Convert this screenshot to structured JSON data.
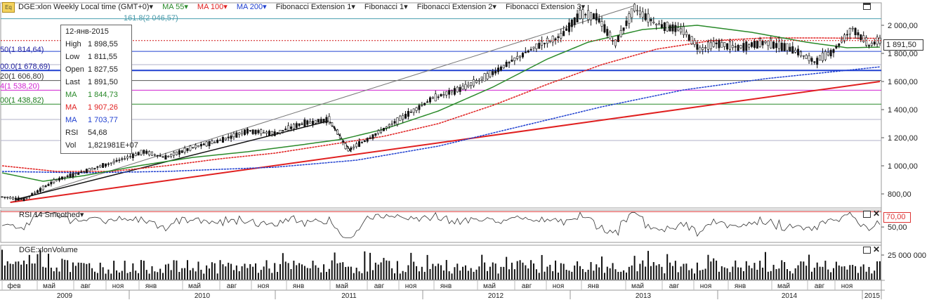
{
  "header": {
    "badge": "Eq",
    "symbol": "DGE:xlon Weekly Local time (GMT+0)▾",
    "ma55": "MA 55▾",
    "ma100": "MA 100▾",
    "ma200": "MA 200▾",
    "fibext1": "Fibonacci Extension 1▾",
    "fib1": "Fibonacci 1▾",
    "fibext2": "Fibonacci Extension 2▾",
    "fibext3": "Fibonacci Extension 3▾"
  },
  "colors": {
    "ma55": "#2a8a2a",
    "ma100": "#e02020",
    "ma200": "#2040d0",
    "fib_magenta": "#d020d0",
    "price_line": "#d01010"
  },
  "tooltip": {
    "date": "12-янв-2015",
    "high_label": "High",
    "high": "1 898,55",
    "low_label": "Low",
    "low": "1 811,55",
    "open_label": "Open",
    "open": "1 827,55",
    "last_label": "Last",
    "last": "1 891,50",
    "ma55_label": "MA",
    "ma55": "1 844,73",
    "ma100_label": "MA",
    "ma100": "1 907,26",
    "ma200_label": "MA",
    "ma200": "1 703,77",
    "rsi_label": "RSI",
    "rsi": "54,68",
    "vol_label": "Vol",
    "vol": "1,821981E+07"
  },
  "fib_labels": {
    "top": "161.8(2 046,57)",
    "l1": "50(1 814,64)",
    "l2": "00.0(1 678,69)",
    "l3": "20(1 606,80)",
    "l4": "4(1 538,20)",
    "l5": "00(1 438,82)"
  },
  "price_tag": "1 891,50",
  "rsi_pane": {
    "title": "RSI 14 Smoothed▾",
    "tag": "70,00"
  },
  "volume_pane": {
    "title": "DGE:xlonVolume"
  },
  "chart_data": {
    "type": "candlestick",
    "price_axis": {
      "ticks": [
        "2 000,00",
        "1 800,00",
        "1 600,00",
        "1 400,00",
        "1 200,00",
        "1 000,00",
        "800,00"
      ],
      "range": [
        700,
        2160
      ]
    },
    "rsi_axis": {
      "ticks": [
        "70,00",
        "50,00"
      ],
      "range": [
        30,
        72
      ]
    },
    "volume_axis": {
      "ticks": [
        "25 000 000"
      ],
      "range": [
        0,
        35000000
      ]
    },
    "x_months": [
      "фев",
      "май",
      "авг",
      "ноя",
      "янв",
      "май",
      "авг",
      "ноя",
      "янв",
      "май",
      "авг",
      "ноя",
      "янв",
      "май",
      "авг",
      "ноя",
      "янв",
      "май",
      "авг",
      "ноя",
      "янв",
      "май",
      "авг",
      "ноя"
    ],
    "x_years": [
      "2009",
      "2010",
      "2011",
      "2012",
      "2013",
      "2014",
      "2015"
    ],
    "price_keypoints": [
      [
        0,
        780
      ],
      [
        8,
        760
      ],
      [
        20,
        900
      ],
      [
        40,
        1020
      ],
      [
        52,
        1100
      ],
      [
        60,
        1060
      ],
      [
        70,
        1130
      ],
      [
        80,
        1180
      ],
      [
        90,
        1250
      ],
      [
        100,
        1230
      ],
      [
        110,
        1300
      ],
      [
        120,
        1330
      ],
      [
        127,
        1110
      ],
      [
        135,
        1200
      ],
      [
        145,
        1320
      ],
      [
        158,
        1480
      ],
      [
        170,
        1560
      ],
      [
        180,
        1660
      ],
      [
        190,
        1780
      ],
      [
        198,
        1870
      ],
      [
        205,
        1920
      ],
      [
        212,
        2080
      ],
      [
        218,
        2060
      ],
      [
        225,
        1870
      ],
      [
        232,
        2120
      ],
      [
        240,
        2010
      ],
      [
        250,
        1960
      ],
      [
        256,
        1830
      ],
      [
        262,
        1870
      ],
      [
        270,
        1840
      ],
      [
        280,
        1880
      ],
      [
        290,
        1830
      ],
      [
        298,
        1740
      ],
      [
        305,
        1820
      ],
      [
        312,
        1980
      ],
      [
        318,
        1860
      ],
      [
        322,
        1891.5
      ]
    ],
    "ma55_keypoints": [
      [
        0,
        950
      ],
      [
        15,
        890
      ],
      [
        30,
        930
      ],
      [
        50,
        1000
      ],
      [
        70,
        1060
      ],
      [
        90,
        1100
      ],
      [
        110,
        1150
      ],
      [
        125,
        1190
      ],
      [
        140,
        1260
      ],
      [
        160,
        1390
      ],
      [
        180,
        1560
      ],
      [
        200,
        1760
      ],
      [
        215,
        1880
      ],
      [
        235,
        1970
      ],
      [
        255,
        2000
      ],
      [
        275,
        1950
      ],
      [
        295,
        1880
      ],
      [
        310,
        1840
      ],
      [
        322,
        1845
      ]
    ],
    "ma100_keypoints": [
      [
        0,
        1000
      ],
      [
        20,
        960
      ],
      [
        40,
        960
      ],
      [
        60,
        1000
      ],
      [
        80,
        1050
      ],
      [
        100,
        1090
      ],
      [
        120,
        1150
      ],
      [
        140,
        1210
      ],
      [
        160,
        1300
      ],
      [
        180,
        1430
      ],
      [
        200,
        1580
      ],
      [
        220,
        1720
      ],
      [
        240,
        1830
      ],
      [
        260,
        1890
      ],
      [
        280,
        1910
      ],
      [
        300,
        1910
      ],
      [
        322,
        1907
      ]
    ],
    "ma200_keypoints": [
      [
        0,
        960
      ],
      [
        30,
        950
      ],
      [
        60,
        960
      ],
      [
        100,
        990
      ],
      [
        130,
        1040
      ],
      [
        160,
        1140
      ],
      [
        190,
        1280
      ],
      [
        220,
        1420
      ],
      [
        250,
        1540
      ],
      [
        280,
        1620
      ],
      [
        300,
        1660
      ],
      [
        322,
        1704
      ]
    ],
    "fib_levels": [
      2046.57,
      1814.64,
      1678.69,
      1606.8,
      1538.2,
      1438.82
    ],
    "rsi_level": 70,
    "bars_count": 323
  }
}
